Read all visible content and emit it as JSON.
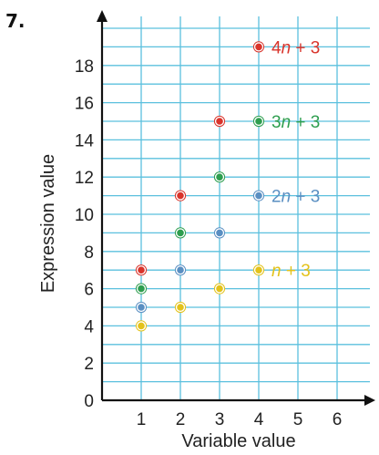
{
  "problem_number": "7.",
  "colors": {
    "grid": "#5bc0de",
    "axis": "#111111",
    "red": "#d9342b",
    "green": "#2e9e4f",
    "blue": "#5a8fc2",
    "yellow": "#e3c21a"
  },
  "chart_data": {
    "type": "scatter",
    "xlabel": "Variable value",
    "ylabel": "Expression value",
    "xlim": [
      0,
      6
    ],
    "ylim": [
      0,
      19.5
    ],
    "x_ticks": [
      1,
      2,
      3,
      4,
      5,
      6
    ],
    "y_ticks": [
      0,
      2,
      4,
      6,
      8,
      10,
      12,
      14,
      16,
      18
    ],
    "grid": true,
    "series": [
      {
        "name": "4n + 3",
        "name_parts": [
          "4",
          "n",
          " + 3"
        ],
        "color": "red",
        "x": [
          1,
          2,
          3
        ],
        "y": [
          7,
          11,
          15
        ],
        "legend": {
          "x": 4,
          "y": 19
        }
      },
      {
        "name": "3n + 3",
        "name_parts": [
          "3",
          "n",
          " + 3"
        ],
        "color": "green",
        "x": [
          1,
          2,
          3
        ],
        "y": [
          6,
          9,
          12
        ],
        "legend": {
          "x": 4,
          "y": 15
        }
      },
      {
        "name": "2n + 3",
        "name_parts": [
          "2",
          "n",
          " + 3"
        ],
        "color": "blue",
        "x": [
          1,
          2,
          3
        ],
        "y": [
          5,
          7,
          9
        ],
        "legend": {
          "x": 4,
          "y": 11
        }
      },
      {
        "name": "n + 3",
        "name_parts": [
          "",
          "n",
          " + 3"
        ],
        "color": "yellow",
        "x": [
          1,
          2,
          3
        ],
        "y": [
          4,
          5,
          6
        ],
        "legend": {
          "x": 4,
          "y": 7
        }
      }
    ]
  }
}
